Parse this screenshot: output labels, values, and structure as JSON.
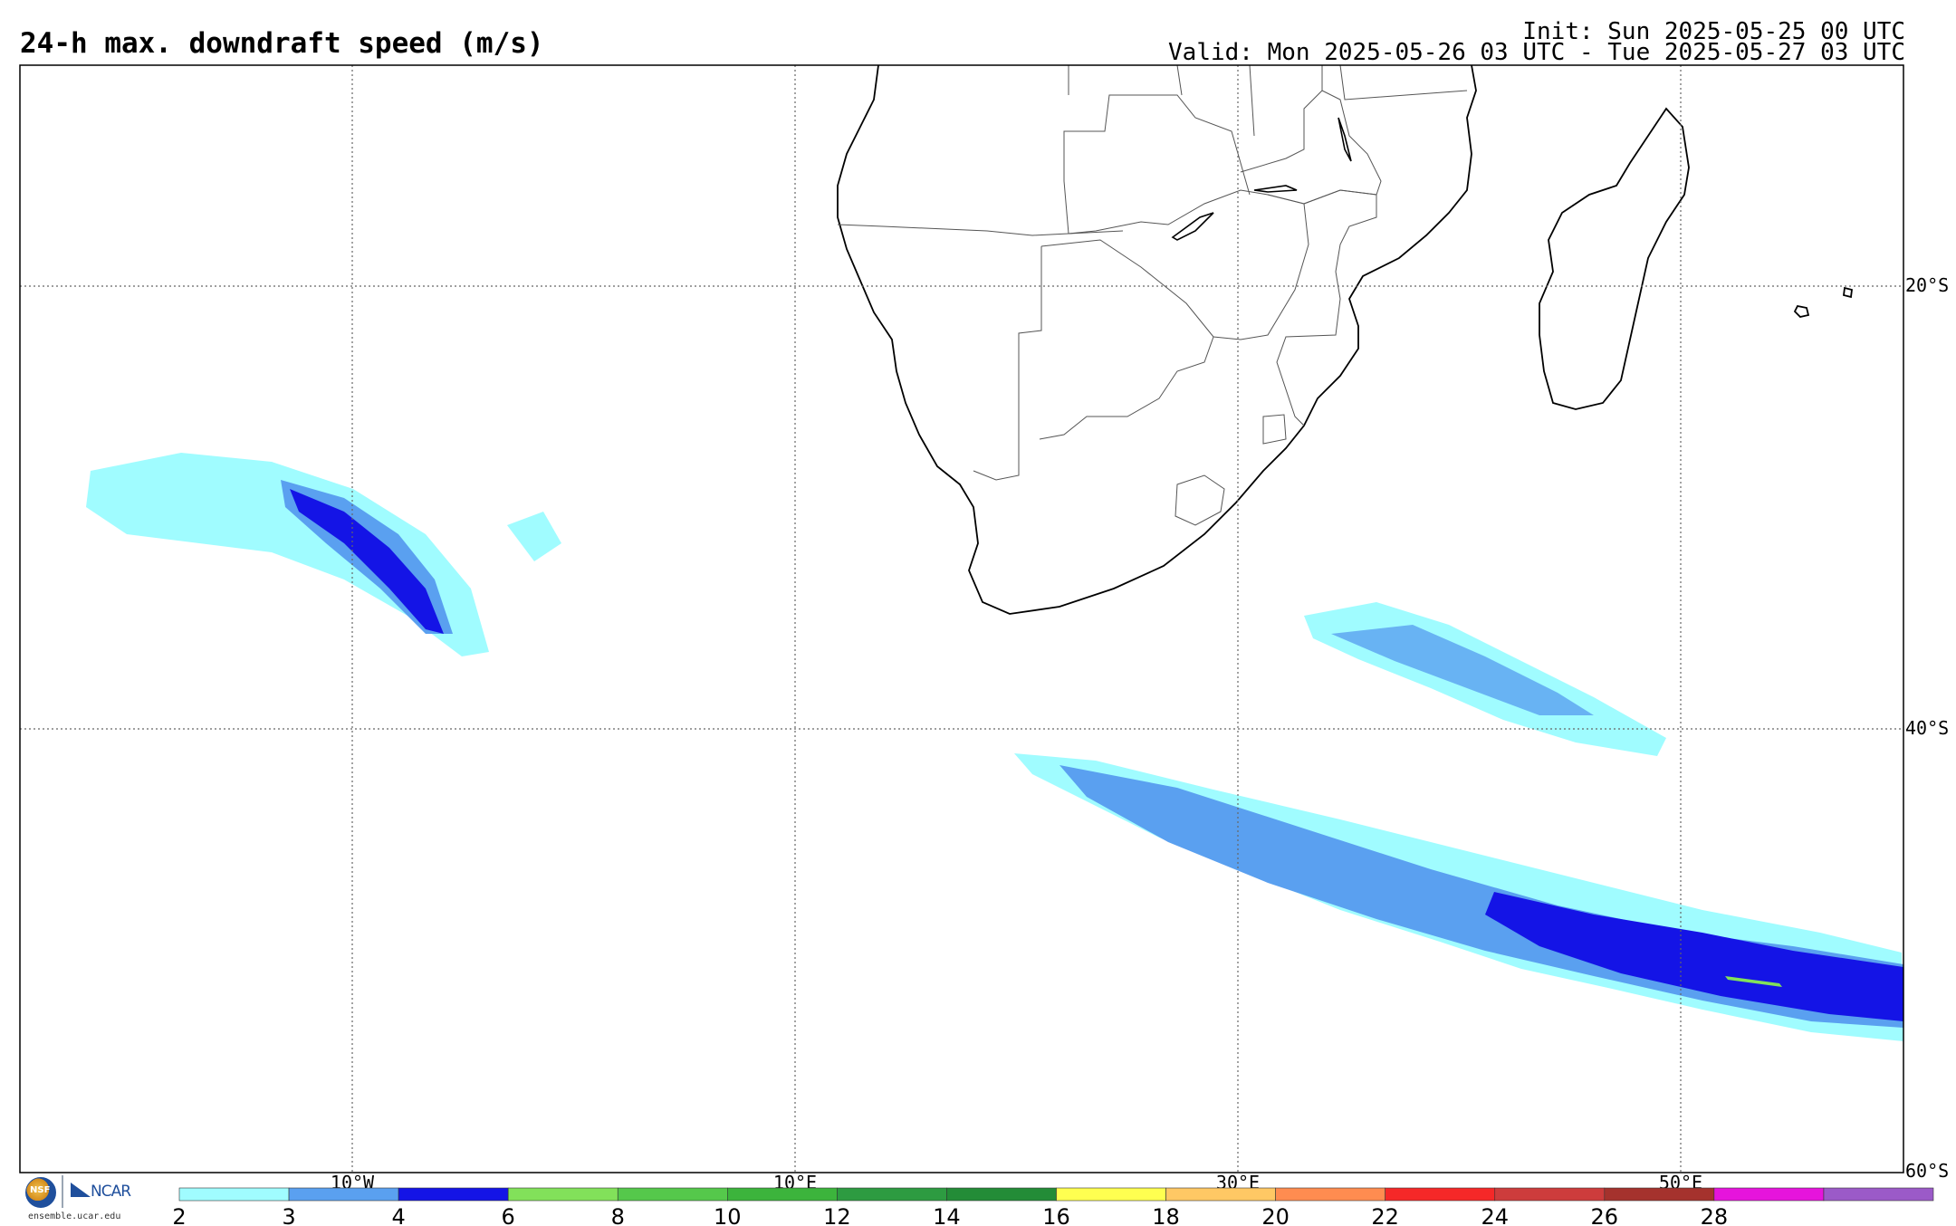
{
  "header": {
    "title": "24-h max. downdraft speed (m/s)",
    "init": "Init: Sun 2025-05-25 00 UTC",
    "valid": "Valid: Mon 2025-05-26 03 UTC - Tue 2025-05-27 03 UTC"
  },
  "map": {
    "lon_range": [
      -17.5,
      67.5
    ],
    "lat_range": [
      -60,
      -10
    ],
    "projection": "cylindrical",
    "gridlines": "dotted",
    "lon_labels": [
      "10°W",
      "10°E",
      "30°E",
      "50°E"
    ],
    "lat_labels": [
      "20°S",
      "40°S",
      "60°S"
    ]
  },
  "colorbar": {
    "tick_labels": [
      "2",
      "3",
      "4",
      "6",
      "8",
      "10",
      "12",
      "14",
      "16",
      "18",
      "20",
      "22",
      "24",
      "26",
      "28"
    ],
    "colors": [
      "#a0fcff",
      "#5aa0f0",
      "#1414e6",
      "#82e15a",
      "#55c84b",
      "#3cb43c",
      "#2d9b41",
      "#238c37",
      "#ffff50",
      "#ffc864",
      "#ff8c50",
      "#f52828",
      "#cd3c3c",
      "#a5322d",
      "#e614dc",
      "#9b5ac8"
    ]
  },
  "footer": {
    "site": "ensemble.ucar.edu",
    "nsf_text": "NSF",
    "ncar_text": "NCAR"
  }
}
